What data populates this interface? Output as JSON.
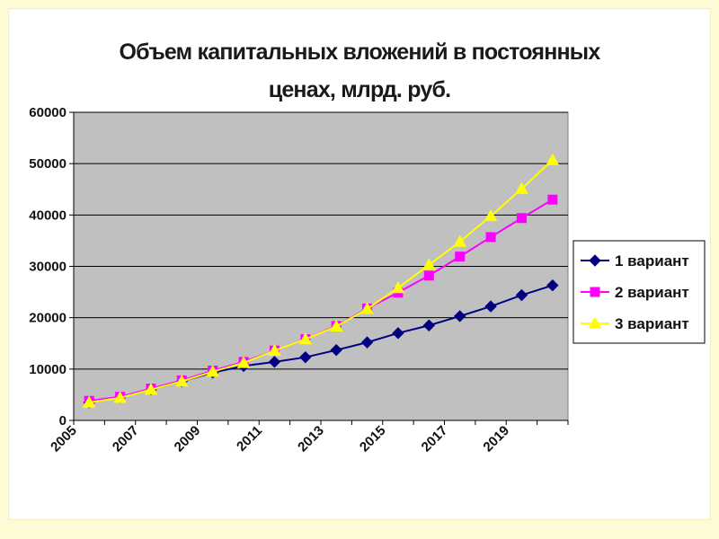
{
  "colors": {
    "page_background": "#fdfbd3",
    "chart_background": "#ffffff",
    "plot_background": "#c0c0c0",
    "gridline": "#000000"
  },
  "chart_data": {
    "type": "line",
    "title_lines": [
      "Объем капитальных вложений в постоянных",
      "ценах, млрд. руб."
    ],
    "xlabel": "",
    "ylabel": "",
    "x": [
      2005,
      2006,
      2007,
      2008,
      2009,
      2010,
      2011,
      2012,
      2013,
      2014,
      2015,
      2016,
      2017,
      2018,
      2019,
      2020
    ],
    "x_tick_labels": [
      "2005",
      "2007",
      "2009",
      "2011",
      "2013",
      "2015",
      "2017",
      "2019"
    ],
    "ylim": [
      0,
      60000
    ],
    "y_ticks": [
      0,
      10000,
      20000,
      30000,
      40000,
      50000,
      60000
    ],
    "y_tick_labels": [
      "0",
      "10000",
      "20000",
      "30000",
      "40000",
      "50000",
      "60000"
    ],
    "grid": true,
    "legend_position": "right",
    "series": [
      {
        "name": "1 вариант",
        "color": "#000080",
        "marker": "diamond",
        "values": [
          3500,
          4500,
          6000,
          7600,
          9300,
          10600,
          11400,
          12300,
          13700,
          15200,
          17000,
          18500,
          20300,
          22200,
          24400,
          26300
        ]
      },
      {
        "name": "2 вариант",
        "color": "#ff00ff",
        "marker": "square",
        "values": [
          3800,
          4600,
          6200,
          7800,
          9700,
          11400,
          13600,
          15800,
          18400,
          21800,
          24900,
          28200,
          31900,
          35700,
          39400,
          43000
        ]
      },
      {
        "name": "3 вариант",
        "color": "#ffff00",
        "marker": "triangle",
        "values": [
          3500,
          4400,
          6000,
          7600,
          9500,
          11200,
          13600,
          15800,
          18300,
          21700,
          25800,
          30300,
          34800,
          39800,
          45100,
          50700
        ]
      }
    ]
  }
}
